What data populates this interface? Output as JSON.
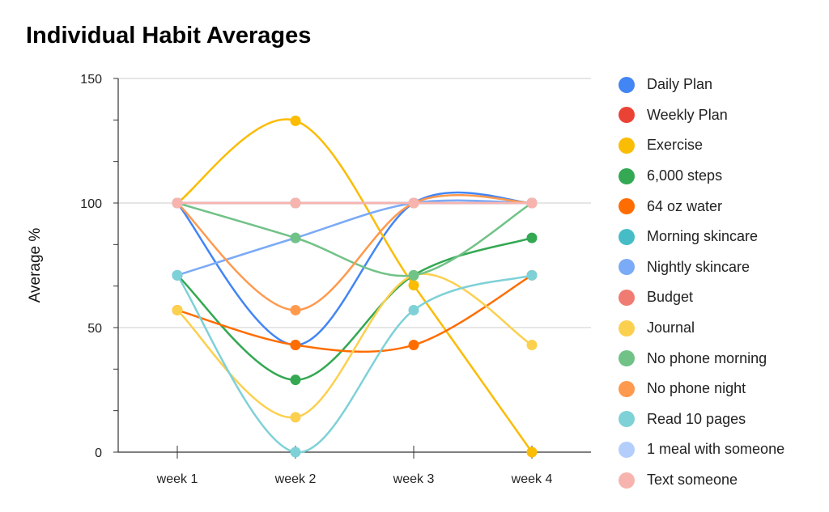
{
  "chart_data": {
    "type": "line",
    "title": "Individual Habit Averages",
    "xlabel": "",
    "ylabel": "Average %",
    "categories": [
      "week 1",
      "week 2",
      "week 3",
      "week 4"
    ],
    "ylim": [
      0,
      150
    ],
    "yticks": [
      0,
      50,
      100,
      150
    ],
    "grid": true,
    "legend": "right",
    "series": [
      {
        "name": "Daily Plan",
        "color": "#4285f4",
        "values": [
          100,
          43,
          100,
          100
        ]
      },
      {
        "name": "Weekly Plan",
        "color": "#ea4335",
        "values": [
          100,
          100,
          100,
          100
        ]
      },
      {
        "name": "Exercise",
        "color": "#fbbc04",
        "values": [
          100,
          133,
          67,
          0
        ]
      },
      {
        "name": "6,000 steps",
        "color": "#34a853",
        "values": [
          71,
          29,
          71,
          86
        ]
      },
      {
        "name": "64 oz water",
        "color": "#ff6d01",
        "values": [
          57,
          43,
          43,
          71
        ]
      },
      {
        "name": "Morning skincare",
        "color": "#46bdc6",
        "values": [
          100,
          100,
          100,
          100
        ]
      },
      {
        "name": "Nightly skincare",
        "color": "#7baaf7",
        "values": [
          71,
          86,
          100,
          100
        ]
      },
      {
        "name": "Budget",
        "color": "#f07b72",
        "values": [
          100,
          100,
          100,
          100
        ]
      },
      {
        "name": "Journal",
        "color": "#fcd04f",
        "values": [
          57,
          14,
          71,
          43
        ]
      },
      {
        "name": "No phone morning",
        "color": "#71c287",
        "values": [
          100,
          86,
          71,
          100
        ]
      },
      {
        "name": "No phone night",
        "color": "#ff994d",
        "values": [
          100,
          57,
          100,
          100
        ]
      },
      {
        "name": "Read 10 pages",
        "color": "#7ed1d7",
        "values": [
          71,
          0,
          57,
          71
        ]
      },
      {
        "name": "1 meal with someone",
        "color": "#b3cefb",
        "values": [
          100,
          100,
          100,
          100
        ]
      },
      {
        "name": "Text someone",
        "color": "#f7b4ae",
        "values": [
          100,
          100,
          100,
          100
        ]
      }
    ]
  }
}
